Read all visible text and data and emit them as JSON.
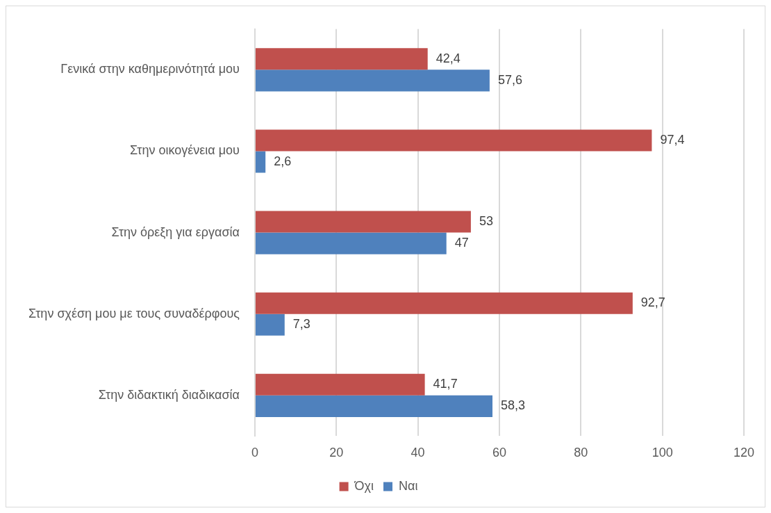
{
  "chart_data": {
    "type": "bar",
    "orientation": "horizontal",
    "categories": [
      "Γενικά στην καθημερινότητά μου",
      "Στην οικογένεια μου",
      "Στην όρεξη για εργασία",
      "Στην σχέση μου με τους συναδέρφους",
      "Στην διδακτική διαδικασία"
    ],
    "series": [
      {
        "name": "Όχι",
        "color": "#c0504d",
        "values": [
          42.4,
          97.4,
          53,
          92.7,
          41.7
        ],
        "value_labels": [
          "42,4",
          "97,4",
          "53",
          "92,7",
          "41,7"
        ]
      },
      {
        "name": "Ναι",
        "color": "#4f81bd",
        "values": [
          57.6,
          2.6,
          47,
          7.3,
          58.3
        ],
        "value_labels": [
          "57,6",
          "2,6",
          "47",
          "7,3",
          "58,3"
        ]
      }
    ],
    "xlim": [
      0,
      120
    ],
    "xticks": [
      0,
      20,
      40,
      60,
      80,
      100,
      120
    ],
    "grid": "x",
    "legend": "bottom"
  }
}
